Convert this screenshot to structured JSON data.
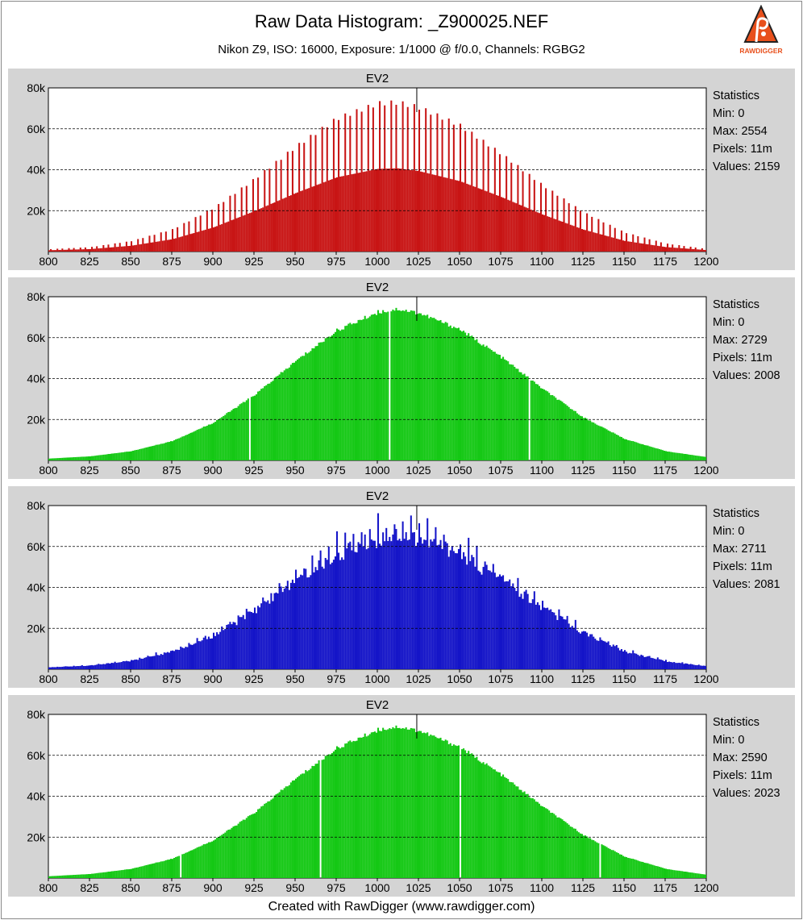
{
  "header": {
    "title": "Raw Data Histogram: _Z900025.NEF",
    "subtitle": "Nikon Z9, ISO: 16000, Exposure: 1/1000 @ f/0.0, Channels: RGBG2",
    "logo_text": "RAWDIGGER"
  },
  "footer": "Created with RawDigger (www.rawdigger.com)",
  "colors": {
    "red": "#c81414",
    "green": "#14c814",
    "blue": "#1414c8",
    "green2": "#14c814",
    "panel_bg": "#d4d4d4",
    "plot_bg": "#ffffff"
  },
  "chart_data": [
    {
      "type": "bar",
      "channel": "R",
      "title": "EV2",
      "xlim": [
        800,
        1200
      ],
      "ylim": [
        0,
        80000
      ],
      "x_ticks": [
        "800",
        "825",
        "850",
        "875",
        "900",
        "925",
        "950",
        "975",
        "1000",
        "1025",
        "1050",
        "1075",
        "1100",
        "1125",
        "1150",
        "1175",
        "1200"
      ],
      "y_ticks": [
        "20k",
        "40k",
        "60k",
        "80k"
      ],
      "grid": "horizontal dashed",
      "marker_x": 1024,
      "peak_center": 1012,
      "peak_count": 74000,
      "pattern": "comb",
      "series": [
        {
          "values": [
            [
              800,
              1200
            ],
            [
              825,
              2200
            ],
            [
              850,
              5200
            ],
            [
              875,
              11000
            ],
            [
              900,
              21500
            ],
            [
              925,
              36000
            ],
            [
              950,
              52000
            ],
            [
              975,
              66000
            ],
            [
              1000,
              73500
            ],
            [
              1012,
              74000
            ],
            [
              1025,
              71500
            ],
            [
              1050,
              62500
            ],
            [
              1075,
              48500
            ],
            [
              1100,
              33000
            ],
            [
              1125,
              19500
            ],
            [
              1150,
              9500
            ],
            [
              1175,
              4000
            ],
            [
              1200,
              1300
            ]
          ]
        }
      ],
      "statistics": {
        "heading": "Statistics",
        "min": "Min: 0",
        "max": "Max: 2554",
        "pixels": "Pixels: 11m",
        "values": "Values: 2159"
      }
    },
    {
      "type": "bar",
      "channel": "G",
      "title": "EV2",
      "xlim": [
        800,
        1200
      ],
      "ylim": [
        0,
        80000
      ],
      "x_ticks": [
        "800",
        "825",
        "850",
        "875",
        "900",
        "925",
        "950",
        "975",
        "1000",
        "1025",
        "1050",
        "1075",
        "1100",
        "1125",
        "1150",
        "1175",
        "1200"
      ],
      "y_ticks": [
        "20k",
        "40k",
        "60k",
        "80k"
      ],
      "grid": "horizontal dashed",
      "marker_x": 1024,
      "peak_center": 1012,
      "peak_count": 74000,
      "pattern": "smooth",
      "gaps": [
        922,
        1007,
        1092
      ],
      "series": [
        {
          "values": [
            [
              800,
              900
            ],
            [
              825,
              2000
            ],
            [
              850,
              4500
            ],
            [
              875,
              9500
            ],
            [
              900,
              18500
            ],
            [
              925,
              32000
            ],
            [
              950,
              48500
            ],
            [
              975,
              63500
            ],
            [
              1000,
              72500
            ],
            [
              1012,
              74000
            ],
            [
              1025,
              72000
            ],
            [
              1050,
              64000
            ],
            [
              1075,
              50500
            ],
            [
              1100,
              35000
            ],
            [
              1125,
              21000
            ],
            [
              1150,
              10500
            ],
            [
              1175,
              4500
            ],
            [
              1200,
              1600
            ]
          ]
        }
      ],
      "statistics": {
        "heading": "Statistics",
        "min": "Min: 0",
        "max": "Max: 2729",
        "pixels": "Pixels: 11m",
        "values": "Values: 2008"
      }
    },
    {
      "type": "bar",
      "channel": "B",
      "title": "EV2",
      "xlim": [
        800,
        1200
      ],
      "ylim": [
        0,
        80000
      ],
      "x_ticks": [
        "800",
        "825",
        "850",
        "875",
        "900",
        "925",
        "950",
        "975",
        "1000",
        "1025",
        "1050",
        "1075",
        "1100",
        "1125",
        "1150",
        "1175",
        "1200"
      ],
      "y_ticks": [
        "20k",
        "40k",
        "60k",
        "80k"
      ],
      "grid": "horizontal dashed",
      "marker_x": 1024,
      "peak_center": 1012,
      "peak_count": 72000,
      "pattern": "spiky",
      "series": [
        {
          "values": [
            [
              800,
              1000
            ],
            [
              825,
              2000
            ],
            [
              850,
              4500
            ],
            [
              875,
              9500
            ],
            [
              900,
              18000
            ],
            [
              925,
              31000
            ],
            [
              950,
              47000
            ],
            [
              975,
              61500
            ],
            [
              1000,
              70000
            ],
            [
              1012,
              72000
            ],
            [
              1025,
              70000
            ],
            [
              1050,
              61500
            ],
            [
              1075,
              47500
            ],
            [
              1100,
              32500
            ],
            [
              1125,
              19500
            ],
            [
              1150,
              9500
            ],
            [
              1175,
              4200
            ],
            [
              1200,
              1600
            ]
          ]
        }
      ],
      "statistics": {
        "heading": "Statistics",
        "min": "Min: 0",
        "max": "Max: 2711",
        "pixels": "Pixels: 11m",
        "values": "Values: 2081"
      }
    },
    {
      "type": "bar",
      "channel": "G2",
      "title": "EV2",
      "xlim": [
        800,
        1200
      ],
      "ylim": [
        0,
        80000
      ],
      "x_ticks": [
        "800",
        "825",
        "850",
        "875",
        "900",
        "925",
        "950",
        "975",
        "1000",
        "1025",
        "1050",
        "1075",
        "1100",
        "1125",
        "1150",
        "1175",
        "1200"
      ],
      "y_ticks": [
        "20k",
        "40k",
        "60k",
        "80k"
      ],
      "grid": "horizontal dashed",
      "marker_x": 1024,
      "peak_center": 1012,
      "peak_count": 74000,
      "pattern": "smooth",
      "gaps": [
        880,
        965,
        1050,
        1135
      ],
      "series": [
        {
          "values": [
            [
              800,
              900
            ],
            [
              825,
              2000
            ],
            [
              850,
              4500
            ],
            [
              875,
              9500
            ],
            [
              900,
              18500
            ],
            [
              925,
              32000
            ],
            [
              950,
              48500
            ],
            [
              975,
              63500
            ],
            [
              1000,
              72500
            ],
            [
              1012,
              74000
            ],
            [
              1025,
              72000
            ],
            [
              1050,
              64000
            ],
            [
              1075,
              50500
            ],
            [
              1100,
              35000
            ],
            [
              1125,
              21000
            ],
            [
              1150,
              10500
            ],
            [
              1175,
              4500
            ],
            [
              1200,
              1600
            ]
          ]
        }
      ],
      "statistics": {
        "heading": "Statistics",
        "min": "Min: 0",
        "max": "Max: 2590",
        "pixels": "Pixels: 11m",
        "values": "Values: 2023"
      }
    }
  ]
}
